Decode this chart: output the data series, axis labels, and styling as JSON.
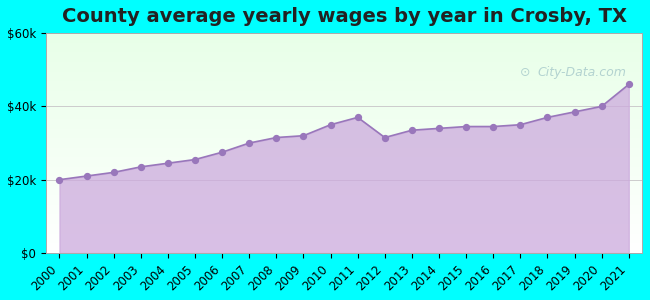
{
  "title": "County average yearly wages by year in Crosby, TX",
  "background_color": "#00FFFF",
  "area_color": "#ccaadd",
  "area_alpha": 0.75,
  "line_color": "#9977bb",
  "marker_color": "#9977bb",
  "watermark": "City-Data.com",
  "years": [
    2000,
    2001,
    2002,
    2003,
    2004,
    2005,
    2006,
    2007,
    2008,
    2009,
    2010,
    2011,
    2012,
    2013,
    2014,
    2015,
    2016,
    2017,
    2018,
    2019,
    2020,
    2021
  ],
  "wages": [
    20000,
    21000,
    22000,
    23500,
    24500,
    25500,
    27500,
    30000,
    31500,
    32000,
    35000,
    37000,
    31500,
    33500,
    34000,
    34500,
    34500,
    35000,
    37000,
    38500,
    40000,
    46000
  ],
  "ylim": [
    0,
    60000
  ],
  "yticks": [
    0,
    20000,
    40000,
    60000
  ],
  "grid_color": "#cccccc",
  "title_fontsize": 14,
  "tick_fontsize": 8.5
}
